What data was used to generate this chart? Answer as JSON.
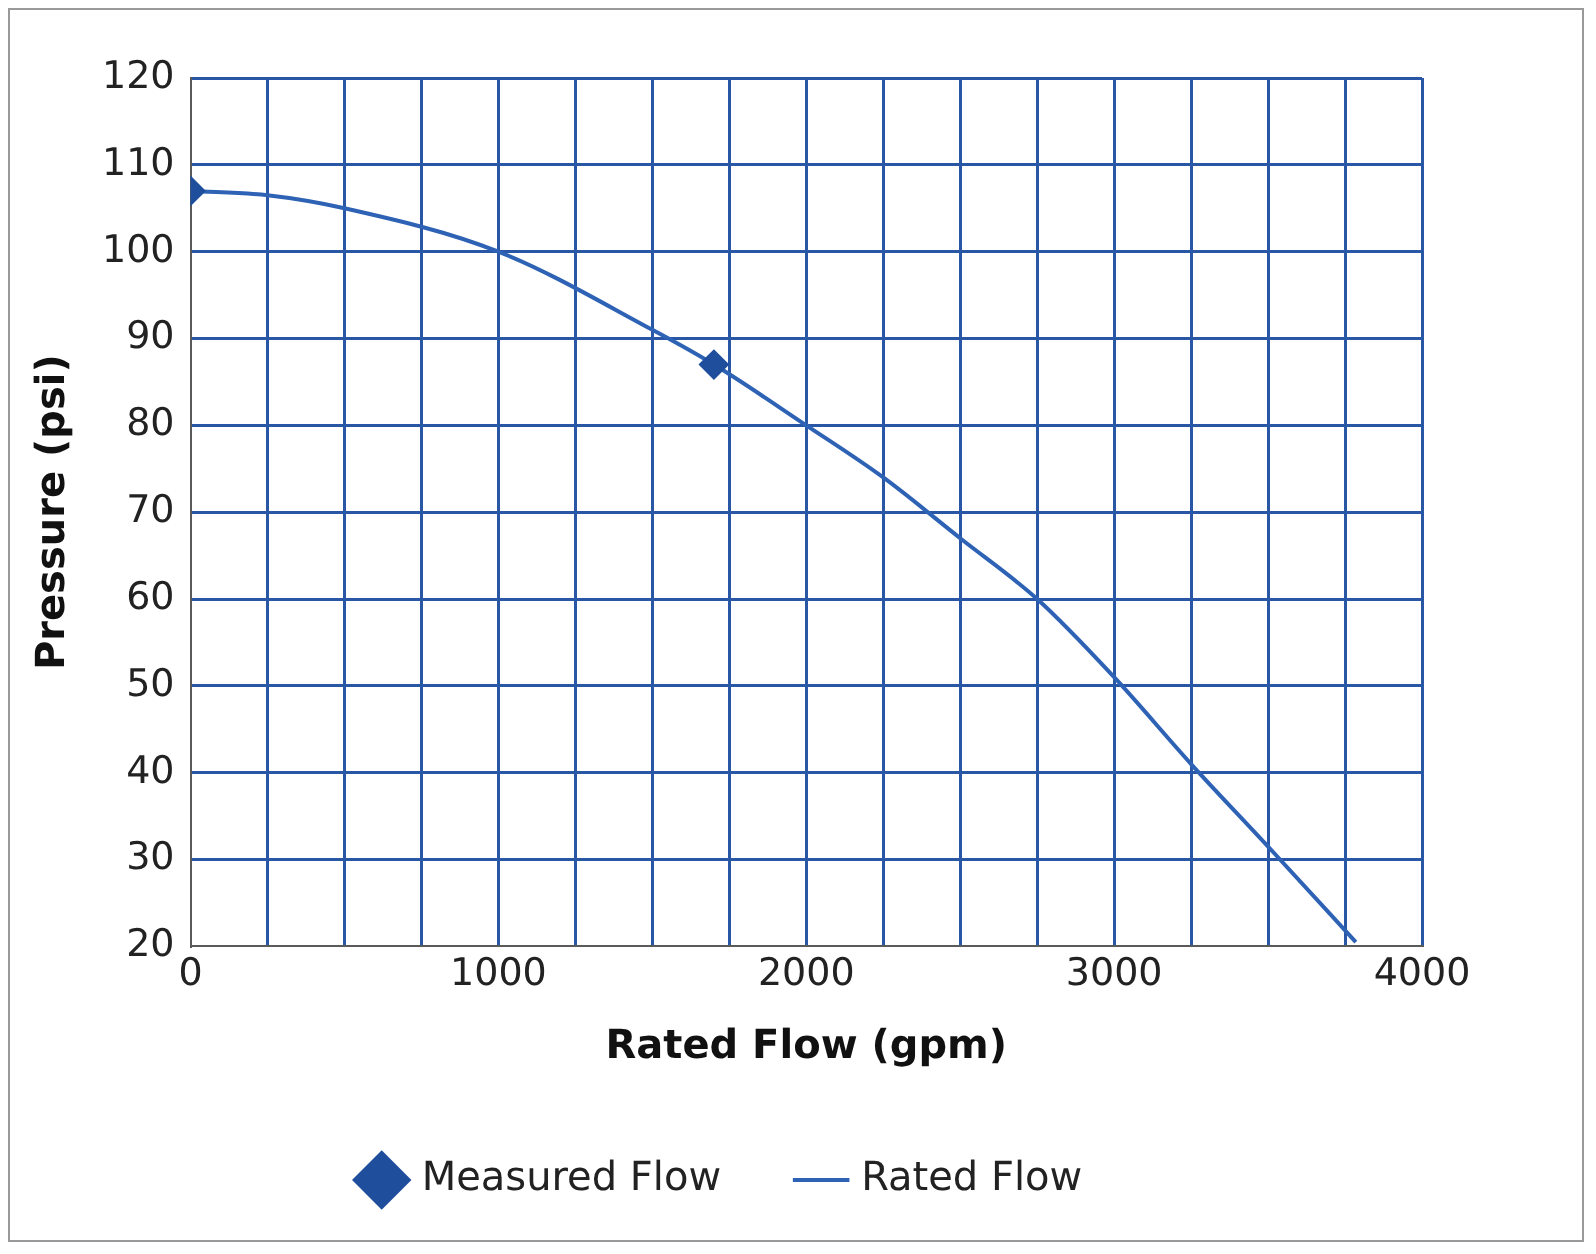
{
  "chart_data": {
    "type": "scatter",
    "xlabel": "Rated Flow (gpm)",
    "ylabel": "Pressure (psi)",
    "xlim": [
      0,
      4000
    ],
    "xticks": [
      0,
      {
        "value": 250,
        "label": null
      },
      {
        "value": 500,
        "label": null
      },
      {
        "value": 750,
        "label": null
      },
      1000,
      {
        "value": 1250,
        "label": null
      },
      {
        "value": 1500,
        "label": null
      },
      {
        "value": 1750,
        "label": null
      },
      2000,
      {
        "value": 2250,
        "label": null
      },
      {
        "value": 2500,
        "label": null
      },
      {
        "value": 2750,
        "label": null
      },
      3000,
      {
        "value": 3250,
        "label": null
      },
      {
        "value": 3500,
        "label": null
      },
      {
        "value": 3750,
        "label": null
      },
      4000
    ],
    "ylim": [
      20,
      120
    ],
    "yticks": [
      20,
      30,
      40,
      50,
      60,
      70,
      80,
      90,
      100,
      110,
      120
    ],
    "grid": true,
    "legend": "bottom",
    "series": [
      {
        "name": "Measured Flow",
        "marker": "diamond",
        "color": "#1f4e9c",
        "x": [
          0,
          1700
        ],
        "values": [
          107,
          87
        ]
      },
      {
        "name": "Rated Flow",
        "type": "line",
        "marker": "none",
        "color": "#2e62b5",
        "x": [
          0,
          250,
          500,
          1000,
          1500,
          1700,
          2000,
          2250,
          2500,
          2750,
          3000,
          3250,
          3500,
          3785
        ],
        "values": [
          107,
          106.5,
          105,
          100,
          91,
          87,
          80,
          74,
          67,
          60,
          51,
          41,
          31.5,
          20.5
        ]
      }
    ]
  }
}
